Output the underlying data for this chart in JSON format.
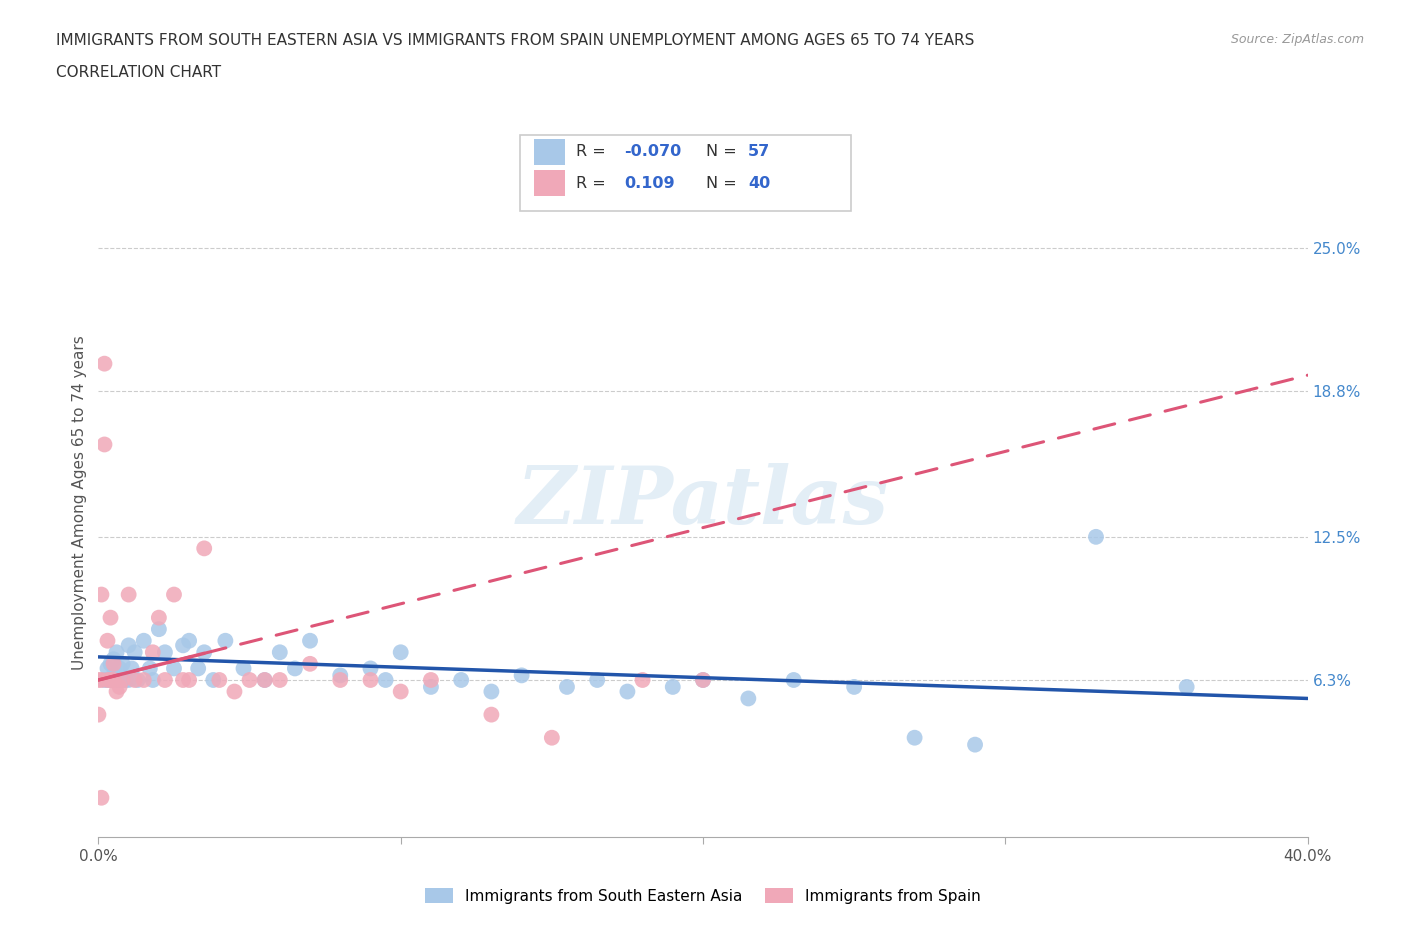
{
  "title_line1": "IMMIGRANTS FROM SOUTH EASTERN ASIA VS IMMIGRANTS FROM SPAIN UNEMPLOYMENT AMONG AGES 65 TO 74 YEARS",
  "title_line2": "CORRELATION CHART",
  "source": "Source: ZipAtlas.com",
  "ylabel": "Unemployment Among Ages 65 to 74 years",
  "xlim": [
    0.0,
    0.4
  ],
  "ylim": [
    -0.005,
    0.285
  ],
  "ytick_labels_right": [
    "6.3%",
    "12.5%",
    "18.8%",
    "25.0%"
  ],
  "ytick_vals_right": [
    0.063,
    0.125,
    0.188,
    0.25
  ],
  "r_blue": -0.07,
  "n_blue": 57,
  "r_pink": 0.109,
  "n_pink": 40,
  "blue_color": "#a8c8e8",
  "pink_color": "#f0a8b8",
  "blue_line_color": "#2255aa",
  "pink_line_color": "#dd5577",
  "watermark": "ZIPatlas",
  "blue_scatter_x": [
    0.002,
    0.003,
    0.003,
    0.004,
    0.004,
    0.005,
    0.005,
    0.005,
    0.006,
    0.006,
    0.007,
    0.007,
    0.008,
    0.008,
    0.009,
    0.01,
    0.01,
    0.011,
    0.012,
    0.013,
    0.015,
    0.017,
    0.018,
    0.02,
    0.022,
    0.025,
    0.028,
    0.03,
    0.033,
    0.035,
    0.038,
    0.042,
    0.048,
    0.055,
    0.06,
    0.065,
    0.07,
    0.08,
    0.09,
    0.095,
    0.1,
    0.11,
    0.12,
    0.13,
    0.14,
    0.155,
    0.165,
    0.175,
    0.19,
    0.2,
    0.215,
    0.23,
    0.25,
    0.27,
    0.29,
    0.33,
    0.36
  ],
  "blue_scatter_y": [
    0.063,
    0.063,
    0.068,
    0.063,
    0.07,
    0.063,
    0.065,
    0.072,
    0.063,
    0.075,
    0.063,
    0.068,
    0.063,
    0.07,
    0.063,
    0.063,
    0.078,
    0.068,
    0.075,
    0.063,
    0.08,
    0.068,
    0.063,
    0.085,
    0.075,
    0.068,
    0.078,
    0.08,
    0.068,
    0.075,
    0.063,
    0.08,
    0.068,
    0.063,
    0.075,
    0.068,
    0.08,
    0.065,
    0.068,
    0.063,
    0.075,
    0.06,
    0.063,
    0.058,
    0.065,
    0.06,
    0.063,
    0.058,
    0.06,
    0.063,
    0.055,
    0.063,
    0.06,
    0.038,
    0.035,
    0.125,
    0.06
  ],
  "pink_scatter_x": [
    0.0,
    0.0,
    0.001,
    0.001,
    0.001,
    0.002,
    0.002,
    0.003,
    0.003,
    0.004,
    0.004,
    0.005,
    0.005,
    0.006,
    0.007,
    0.008,
    0.01,
    0.012,
    0.015,
    0.018,
    0.02,
    0.022,
    0.025,
    0.028,
    0.03,
    0.035,
    0.04,
    0.045,
    0.05,
    0.055,
    0.06,
    0.07,
    0.08,
    0.09,
    0.1,
    0.11,
    0.13,
    0.15,
    0.18,
    0.2
  ],
  "pink_scatter_y": [
    0.063,
    0.048,
    0.063,
    0.1,
    0.012,
    0.2,
    0.165,
    0.063,
    0.08,
    0.063,
    0.09,
    0.063,
    0.07,
    0.058,
    0.06,
    0.063,
    0.1,
    0.063,
    0.063,
    0.075,
    0.09,
    0.063,
    0.1,
    0.063,
    0.063,
    0.12,
    0.063,
    0.058,
    0.063,
    0.063,
    0.063,
    0.07,
    0.063,
    0.063,
    0.058,
    0.063,
    0.048,
    0.038,
    0.063,
    0.063
  ],
  "pink_line_x0": 0.0,
  "pink_line_x1": 0.4,
  "pink_line_y0": 0.063,
  "pink_line_y1": 0.195,
  "blue_line_x0": 0.0,
  "blue_line_x1": 0.4,
  "blue_line_y0": 0.073,
  "blue_line_y1": 0.055
}
